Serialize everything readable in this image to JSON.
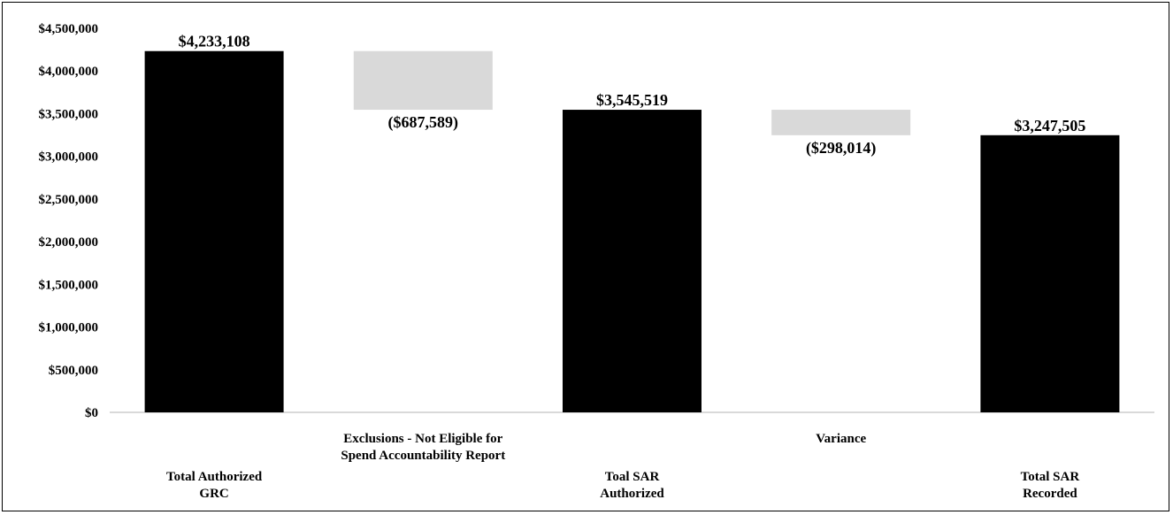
{
  "chart_data": {
    "type": "waterfall",
    "categories": [
      "Total Authorized GRC",
      "Exclusions - Not Eligible for Spend Accountability Report",
      "Toal SAR Authorized",
      "Variance",
      "Total SAR Recorded"
    ],
    "category_label_lines": [
      [
        "Total Authorized",
        "GRC"
      ],
      [
        "Exclusions - Not Eligible for",
        "Spend Accountability Report"
      ],
      [
        "Toal SAR",
        "Authorized"
      ],
      [
        "Variance"
      ],
      [
        "Total SAR",
        "Recorded"
      ]
    ],
    "label_tiers": [
      "bottom",
      "upper",
      "bottom",
      "upper",
      "bottom"
    ],
    "kinds": [
      "total",
      "delta",
      "total",
      "delta",
      "total"
    ],
    "values": [
      4233108,
      -687589,
      3545519,
      -298014,
      3247505
    ],
    "data_labels": [
      "$4,233,108",
      "($687,589)",
      "$3,545,519",
      "($298,014)",
      "$3,247,505"
    ],
    "y_ticks": [
      "$0",
      "$500,000",
      "$1,000,000",
      "$1,500,000",
      "$2,000,000",
      "$2,500,000",
      "$3,000,000",
      "$3,500,000",
      "$4,000,000",
      "$4,500,000"
    ],
    "ylim": [
      0,
      4500000
    ],
    "colors": {
      "total": "#000000",
      "delta": "#d9d9d9",
      "axis": "#d9d9d9"
    },
    "title": "",
    "xlabel": "",
    "ylabel": "",
    "grid": false,
    "legend": "none"
  }
}
